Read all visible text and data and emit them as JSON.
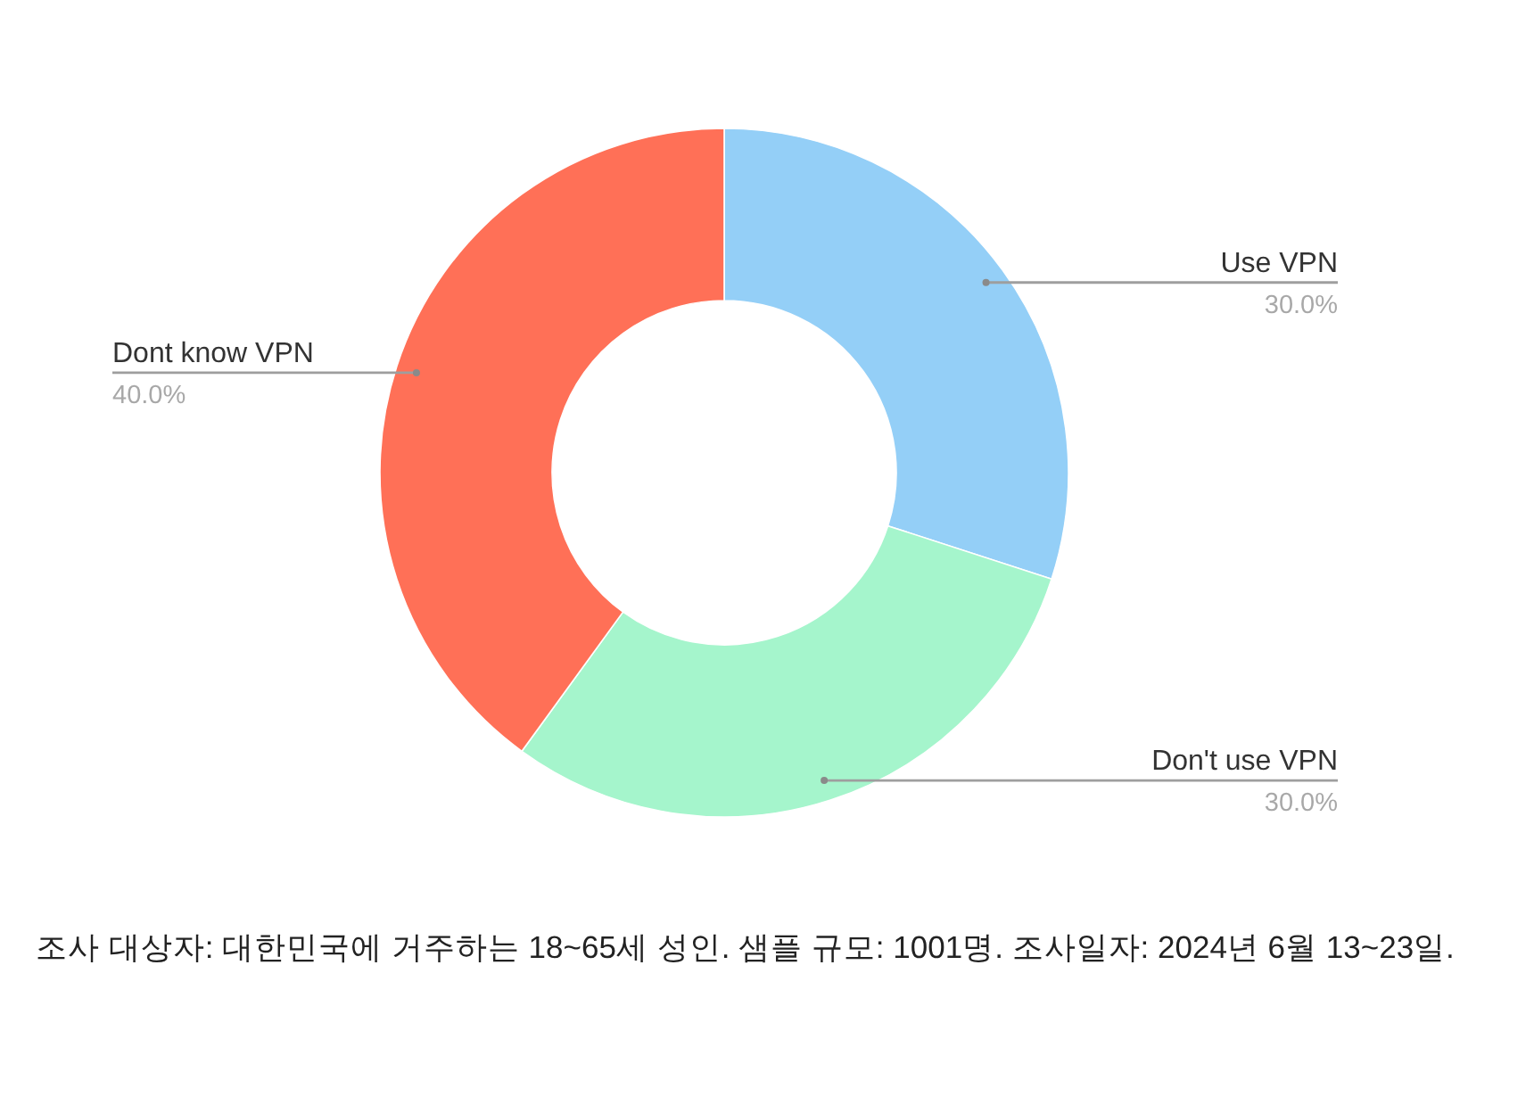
{
  "chart_data": {
    "type": "donut",
    "categories": [
      "Use VPN",
      "Don't use VPN",
      "Dont know VPN"
    ],
    "values": [
      30,
      30,
      40
    ],
    "colors": [
      "#94cff7",
      "#a5f5cc",
      "#ff7057"
    ],
    "value_labels": [
      "30.0%",
      "30.0%",
      "40.0%"
    ],
    "annotations": [
      "조사 대상자: 대한민국에 거주하는 18~65세 성인. 샘플 규모: 1001명. 조사일자: 2024년 6월 13~23일."
    ]
  }
}
